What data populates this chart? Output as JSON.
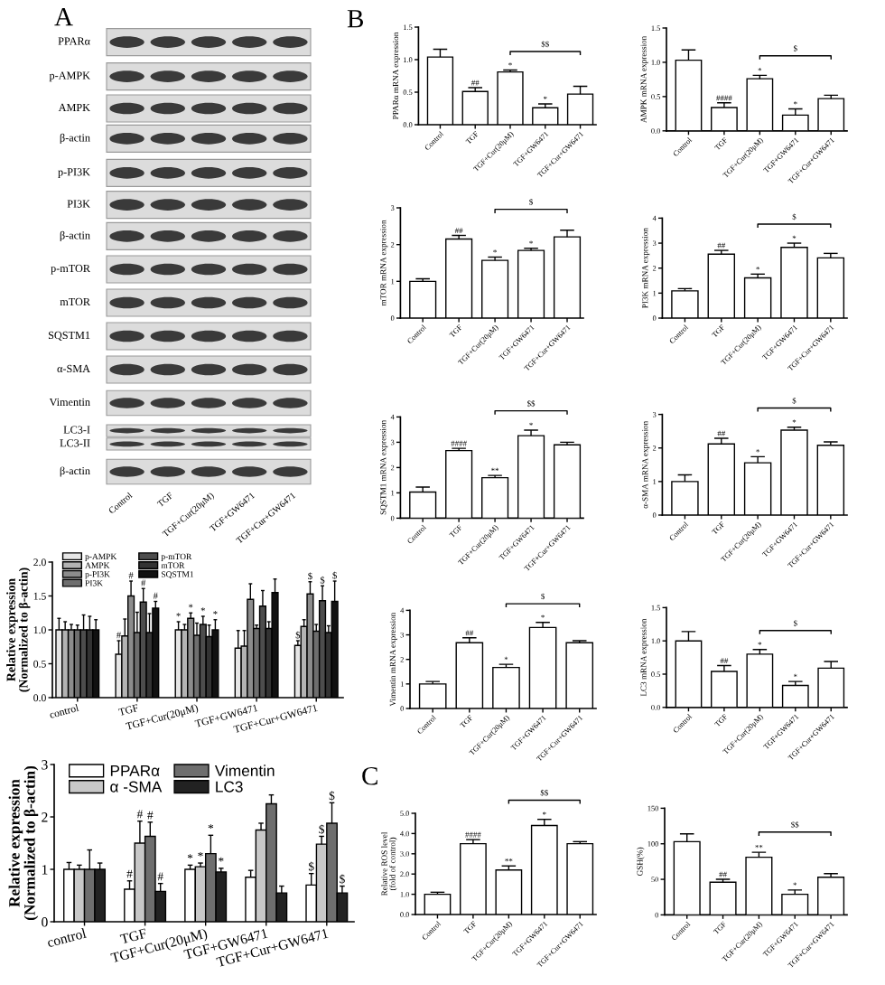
{
  "chart_data": [
    {
      "type": "other",
      "title": "A",
      "categories": [
        "Control",
        "TGF",
        "TGF+Cur(20μM)",
        "TGF+GW6471",
        "TGF+Cur+GW6471"
      ],
      "y_categories": [
        "PPARα",
        "p-AMPK",
        "AMPK",
        "β-actin",
        "p-PI3K",
        "PI3K",
        "β-actin",
        "p-mTOR",
        "mTOR",
        "SQSTM1",
        "α-SMA",
        "Vimentin",
        "LC3-I",
        "LC3-II",
        "β-actin"
      ]
    },
    {
      "type": "bar",
      "ylabel": "Relative expression\n(Normalized to β-actin)",
      "categories": [
        "control",
        "TGF",
        "TGF+Cur(20μM)",
        "TGF+GW6471",
        "TGF+Cur+GW6471"
      ],
      "ylim": [
        0,
        2
      ],
      "yticks": [
        {
          "value": 0,
          "label": "0.0"
        },
        {
          "value": 0.5,
          "label": "0.5"
        },
        {
          "value": 1,
          "label": "1.0"
        },
        {
          "value": 1.5,
          "label": "1.5"
        },
        {
          "value": 2,
          "label": "2.0"
        }
      ],
      "legend": "top left",
      "series": [
        {
          "name": "p-AMPK",
          "color": "#e6e6e6",
          "values": [
            1.0,
            0.64,
            1.0,
            0.73,
            0.77
          ],
          "errors": [
            0.17,
            0.2,
            0.12,
            0.26,
            0.07
          ],
          "value_labels": [
            null,
            "#",
            "*",
            null,
            "$"
          ]
        },
        {
          "name": "AMPK",
          "color": "#b3b3b3",
          "values": [
            1.0,
            0.91,
            1.0,
            0.76,
            1.05
          ],
          "errors": [
            0.12,
            0.25,
            0.08,
            0.23,
            0.1
          ]
        },
        {
          "name": "p-PI3K",
          "color": "#8c8c8c",
          "values": [
            1.0,
            1.5,
            1.17,
            1.45,
            1.53
          ],
          "errors": [
            0.08,
            0.22,
            0.08,
            0.23,
            0.18
          ],
          "value_labels": [
            null,
            "#",
            "*",
            null,
            "$"
          ]
        },
        {
          "name": "PI3K",
          "color": "#6e6e6e",
          "values": [
            1.0,
            0.96,
            0.92,
            1.02,
            0.98
          ],
          "errors": [
            0.07,
            0.3,
            0.18,
            0.05,
            0.1
          ]
        },
        {
          "name": "p-mTOR",
          "color": "#4d4d4d",
          "values": [
            1.0,
            1.41,
            1.08,
            1.35,
            1.43
          ],
          "errors": [
            0.22,
            0.2,
            0.12,
            0.23,
            0.22
          ],
          "value_labels": [
            null,
            "#",
            "*",
            null,
            "$"
          ]
        },
        {
          "name": "mTOR",
          "color": "#333333",
          "values": [
            1.0,
            0.96,
            0.9,
            1.02,
            0.96
          ],
          "errors": [
            0.2,
            0.28,
            0.17,
            0.1,
            0.1
          ]
        },
        {
          "name": "SQSTM1",
          "color": "#111111",
          "values": [
            1.0,
            1.32,
            1.0,
            1.55,
            1.42
          ],
          "errors": [
            0.15,
            0.1,
            0.15,
            0.2,
            0.3
          ],
          "value_labels": [
            null,
            "#",
            "*",
            null,
            "$"
          ]
        }
      ]
    },
    {
      "type": "bar",
      "ylabel": "Relative expression\n(Normalized to β-actin)",
      "categories": [
        "control",
        "TGF",
        "TGF+Cur(20μM)",
        "TGF+GW6471",
        "TGF+Cur+GW6471"
      ],
      "ylim": [
        0,
        3
      ],
      "yticks": [
        0,
        1,
        2,
        3
      ],
      "legend": "top left",
      "series": [
        {
          "name": "PPARα",
          "color": "#ffffff",
          "values": [
            1.0,
            0.62,
            1.0,
            0.85,
            0.7
          ],
          "errors": [
            0.13,
            0.16,
            0.08,
            0.13,
            0.22
          ],
          "value_labels": [
            null,
            "#",
            "*",
            null,
            "$"
          ]
        },
        {
          "name": "α -SMA",
          "color": "#c8c8c8",
          "values": [
            1.0,
            1.5,
            1.05,
            1.75,
            1.48
          ],
          "errors": [
            0.08,
            0.42,
            0.07,
            0.13,
            0.15
          ],
          "value_labels": [
            null,
            "#",
            "*",
            null,
            "$"
          ]
        },
        {
          "name": "Vimentin",
          "color": "#6e6e6e",
          "values": [
            1.0,
            1.63,
            1.3,
            2.25,
            1.88
          ],
          "errors": [
            0.37,
            0.27,
            0.35,
            0.17,
            0.39
          ],
          "value_labels": [
            null,
            "#",
            "*",
            null,
            "$"
          ]
        },
        {
          "name": "LC3",
          "color": "#222222",
          "values": [
            1.0,
            0.58,
            0.95,
            0.55,
            0.55
          ],
          "errors": [
            0.12,
            0.15,
            0.07,
            0.13,
            0.13
          ],
          "value_labels": [
            null,
            "#",
            "*",
            null,
            "$"
          ]
        }
      ]
    },
    {
      "type": "bar",
      "title": "B",
      "ylabel": "PPARα mRNA expression",
      "categories": [
        "Control",
        "TGF",
        "TGF+Cur(20μM)",
        "TGF+GW6471",
        "TGF+Cur+GW6471"
      ],
      "color": "#ffffff",
      "values": [
        1.04,
        0.51,
        0.81,
        0.26,
        0.47
      ],
      "errors": [
        0.12,
        0.06,
        0.03,
        0.06,
        0.12
      ],
      "value_labels": [
        null,
        "##",
        "*",
        "*",
        null
      ],
      "ylim": [
        0,
        1.5
      ],
      "yticks": [
        {
          "value": 0,
          "label": "0.0"
        },
        {
          "value": 0.5,
          "label": "0.5"
        },
        {
          "value": 1,
          "label": "1.0"
        },
        {
          "value": 1.5,
          "label": "1.5"
        }
      ],
      "annotations": [
        "$$"
      ]
    },
    {
      "type": "bar",
      "ylabel": "AMPK mRNA expression",
      "categories": [
        "Control",
        "TGF",
        "TGF+Cur(20μM)",
        "TGF+GW6471",
        "TGF+Cur+GW6471"
      ],
      "color": "#ffffff",
      "values": [
        1.03,
        0.34,
        0.76,
        0.23,
        0.47
      ],
      "errors": [
        0.15,
        0.07,
        0.05,
        0.09,
        0.05
      ],
      "value_labels": [
        null,
        "####",
        "*",
        "*",
        null
      ],
      "ylim": [
        0,
        1.5
      ],
      "yticks": [
        {
          "value": 0,
          "label": "0.0"
        },
        {
          "value": 0.5,
          "label": "0.5"
        },
        {
          "value": 1,
          "label": "1.0"
        },
        {
          "value": 1.5,
          "label": "1.5"
        }
      ],
      "annotations": [
        "$"
      ]
    },
    {
      "type": "bar",
      "ylabel": "mTOR mRNA expression",
      "categories": [
        "Control",
        "TGF",
        "TGF+Cur(20μM)",
        "TGF+GW6471",
        "TGF+Cur+GW6471"
      ],
      "color": "#ffffff",
      "values": [
        1.0,
        2.15,
        1.57,
        1.84,
        2.21
      ],
      "errors": [
        0.07,
        0.1,
        0.09,
        0.06,
        0.18
      ],
      "value_labels": [
        null,
        "##",
        "*",
        "*",
        null
      ],
      "ylim": [
        0,
        3
      ],
      "yticks": [
        0,
        1,
        2,
        3
      ],
      "annotations": [
        "$"
      ]
    },
    {
      "type": "bar",
      "ylabel": "PI3K mRNA expression",
      "categories": [
        "Control",
        "TGF",
        "TGF+Cur(20μM)",
        "TGF+GW6471",
        "TGF+Cur+GW6471"
      ],
      "color": "#ffffff",
      "values": [
        1.09,
        2.56,
        1.61,
        2.83,
        2.41
      ],
      "errors": [
        0.09,
        0.15,
        0.15,
        0.17,
        0.18
      ],
      "value_labels": [
        null,
        "##",
        "*",
        "*",
        null
      ],
      "ylim": [
        0,
        4
      ],
      "yticks": [
        0,
        1,
        2,
        3,
        4
      ],
      "annotations": [
        "$"
      ]
    },
    {
      "type": "bar",
      "ylabel": "SQSTM1 mRNA expression",
      "categories": [
        "Control",
        "TGF",
        "TGF+Cur(20μM)",
        "TGF+GW6471",
        "TGF+Cur+GW6471"
      ],
      "color": "#ffffff",
      "values": [
        1.03,
        2.67,
        1.6,
        3.26,
        2.9
      ],
      "errors": [
        0.2,
        0.09,
        0.09,
        0.22,
        0.1
      ],
      "value_labels": [
        null,
        "####",
        "**",
        "*",
        null
      ],
      "ylim": [
        0,
        4
      ],
      "yticks": [
        0,
        1,
        2,
        3,
        4
      ],
      "annotations": [
        "$$"
      ]
    },
    {
      "type": "bar",
      "ylabel": "α-SMA mRNA expression",
      "categories": [
        "Control",
        "TGF",
        "TGF+Cur(20μM)",
        "TGF+GW6471",
        "TGF+Cur+GW6471"
      ],
      "color": "#ffffff",
      "values": [
        1.0,
        2.12,
        1.56,
        2.53,
        2.08
      ],
      "errors": [
        0.2,
        0.17,
        0.18,
        0.09,
        0.1
      ],
      "value_labels": [
        null,
        "##",
        "*",
        "*",
        null
      ],
      "ylim": [
        0,
        3
      ],
      "yticks": [
        0,
        1,
        2,
        3
      ],
      "annotations": [
        "$"
      ]
    },
    {
      "type": "bar",
      "ylabel": "Vimentin mRNA expression",
      "categories": [
        "Control",
        "TGF",
        "TGF+Cur(20μM)",
        "TGF+GW6471",
        "TGF+Cur+GW6471"
      ],
      "color": "#ffffff",
      "values": [
        1.0,
        2.68,
        1.67,
        3.3,
        2.68
      ],
      "errors": [
        0.1,
        0.2,
        0.13,
        0.21,
        0.08
      ],
      "value_labels": [
        null,
        "##",
        "*",
        "*",
        null
      ],
      "ylim": [
        0,
        4
      ],
      "yticks": [
        0,
        1,
        2,
        3,
        4
      ],
      "annotations": [
        "$"
      ]
    },
    {
      "type": "bar",
      "ylabel": "LC3 mRNA expression",
      "categories": [
        "Control",
        "TGF",
        "TGF+Cur(20μM)",
        "TGF+GW6471",
        "TGF+Cur+GW6471"
      ],
      "color": "#ffffff",
      "values": [
        1.0,
        0.54,
        0.8,
        0.33,
        0.59
      ],
      "errors": [
        0.14,
        0.09,
        0.07,
        0.06,
        0.1
      ],
      "value_labels": [
        null,
        "##",
        "*",
        "*",
        null
      ],
      "ylim": [
        0,
        1.5
      ],
      "yticks": [
        {
          "value": 0,
          "label": "0.0"
        },
        {
          "value": 0.5,
          "label": "0.5"
        },
        {
          "value": 1,
          "label": "1.0"
        },
        {
          "value": 1.5,
          "label": "1.5"
        }
      ],
      "annotations": [
        "$"
      ]
    },
    {
      "type": "bar",
      "title": "C",
      "ylabel": "Relative ROS level\n(fold of control)",
      "categories": [
        "Control",
        "TGF",
        "TGF+Cur(20μM)",
        "TGF+GW6471",
        "TGF+Cur+GW6471"
      ],
      "color": "#ffffff",
      "values": [
        1.0,
        3.5,
        2.2,
        4.4,
        3.5
      ],
      "errors": [
        0.1,
        0.2,
        0.2,
        0.3,
        0.1
      ],
      "value_labels": [
        null,
        "####",
        "**",
        "*",
        null
      ],
      "ylim": [
        0,
        5
      ],
      "yticks": [
        {
          "value": 0,
          "label": "0.0"
        },
        {
          "value": 1,
          "label": "1.0"
        },
        {
          "value": 2,
          "label": "2.0"
        },
        {
          "value": 3,
          "label": "3.0"
        },
        {
          "value": 4,
          "label": "4.0"
        },
        {
          "value": 5,
          "label": "5.0"
        }
      ],
      "annotations": [
        "$$"
      ]
    },
    {
      "type": "bar",
      "ylabel": "GSH(%)",
      "categories": [
        "Control",
        "TGF",
        "TGF+Cur(20μM)",
        "TGF+GW6471",
        "TGF+Cur+GW6471"
      ],
      "color": "#ffffff",
      "values": [
        103,
        46,
        81,
        29,
        53
      ],
      "errors": [
        11,
        4,
        7,
        6,
        5
      ],
      "value_labels": [
        null,
        "##",
        "**",
        "*",
        null
      ],
      "ylim": [
        0,
        150
      ],
      "yticks": [
        0,
        50,
        100,
        150
      ],
      "annotations": [
        "$$"
      ]
    }
  ]
}
